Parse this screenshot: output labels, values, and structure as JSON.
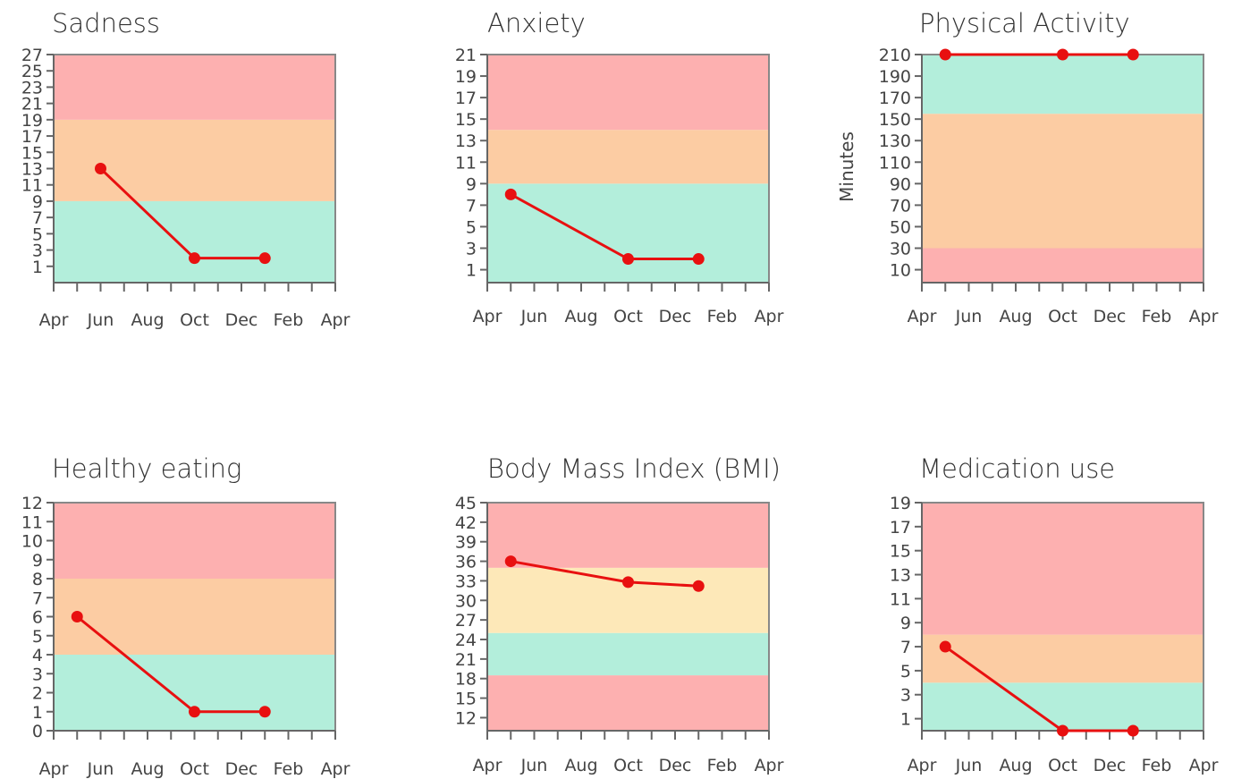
{
  "colors": {
    "red_zone": "#fdb0b0",
    "orange_zone": "#fccca3",
    "yellow_zone": "#fde8b8",
    "green_zone": "#b3eedb",
    "line": "#e81010",
    "axis": "#666666",
    "frame": "#888888"
  },
  "x_tick_labels": [
    "Apr",
    "Jun",
    "Aug",
    "Oct",
    "Dec",
    "Feb",
    "Apr"
  ],
  "x_axis_note": "x values are months since the first April tick (April = 0 ... April next year = 12)",
  "chart_data": [
    {
      "type": "line",
      "title": "Sadness",
      "xlabel": "",
      "ylabel": "",
      "x_ticks": [
        0,
        2,
        4,
        6,
        8,
        10,
        12
      ],
      "ylim": [
        -1,
        27
      ],
      "y_ticks": [
        1,
        3,
        5,
        7,
        9,
        11,
        13,
        15,
        17,
        19,
        21,
        23,
        25,
        27
      ],
      "bands": [
        {
          "from": -1,
          "to": 9,
          "color": "green_zone"
        },
        {
          "from": 9,
          "to": 19,
          "color": "orange_zone"
        },
        {
          "from": 19,
          "to": 27,
          "color": "red_zone"
        }
      ],
      "series": [
        {
          "x": [
            2,
            6,
            9
          ],
          "values": [
            13,
            2,
            2
          ]
        }
      ]
    },
    {
      "type": "line",
      "title": "Anxiety",
      "xlabel": "",
      "ylabel": "",
      "x_ticks": [
        0,
        2,
        4,
        6,
        8,
        10,
        12
      ],
      "ylim": [
        -0.2,
        21
      ],
      "y_ticks": [
        1,
        3,
        5,
        7,
        9,
        11,
        13,
        15,
        17,
        19,
        21
      ],
      "bands": [
        {
          "from": -0.2,
          "to": 9,
          "color": "green_zone"
        },
        {
          "from": 9,
          "to": 14,
          "color": "orange_zone"
        },
        {
          "from": 14,
          "to": 21,
          "color": "red_zone"
        }
      ],
      "series": [
        {
          "x": [
            1,
            6,
            9
          ],
          "values": [
            8,
            2,
            2
          ]
        }
      ]
    },
    {
      "type": "line",
      "title": "Physical Activity",
      "xlabel": "",
      "ylabel": "Minutes",
      "x_ticks": [
        0,
        2,
        4,
        6,
        8,
        10,
        12
      ],
      "ylim": [
        -2,
        210
      ],
      "y_ticks": [
        10,
        30,
        50,
        70,
        90,
        110,
        130,
        150,
        170,
        190,
        210
      ],
      "bands": [
        {
          "from": -2,
          "to": 30,
          "color": "red_zone"
        },
        {
          "from": 30,
          "to": 155,
          "color": "orange_zone"
        },
        {
          "from": 155,
          "to": 210,
          "color": "green_zone"
        }
      ],
      "series": [
        {
          "x": [
            1,
            6,
            9
          ],
          "values": [
            210,
            210,
            210
          ]
        }
      ]
    },
    {
      "type": "line",
      "title": "Healthy eating",
      "xlabel": "",
      "ylabel": "",
      "x_ticks": [
        0,
        2,
        4,
        6,
        8,
        10,
        12
      ],
      "ylim": [
        0,
        12
      ],
      "y_ticks": [
        0,
        1,
        2,
        3,
        4,
        5,
        6,
        7,
        8,
        9,
        10,
        11,
        12
      ],
      "bands": [
        {
          "from": 0,
          "to": 4,
          "color": "green_zone"
        },
        {
          "from": 4,
          "to": 8,
          "color": "orange_zone"
        },
        {
          "from": 8,
          "to": 12,
          "color": "red_zone"
        }
      ],
      "series": [
        {
          "x": [
            1,
            6,
            9
          ],
          "values": [
            6,
            1,
            1
          ]
        }
      ]
    },
    {
      "type": "line",
      "title": "Body Mass Index (BMI)",
      "xlabel": "",
      "ylabel": "",
      "x_ticks": [
        0,
        2,
        4,
        6,
        8,
        10,
        12
      ],
      "ylim": [
        10,
        45
      ],
      "y_ticks": [
        12,
        15,
        18,
        21,
        24,
        27,
        30,
        33,
        36,
        39,
        42,
        45
      ],
      "bands": [
        {
          "from": 10,
          "to": 18.5,
          "color": "red_zone"
        },
        {
          "from": 18.5,
          "to": 25,
          "color": "green_zone"
        },
        {
          "from": 25,
          "to": 35,
          "color": "yellow_zone"
        },
        {
          "from": 35,
          "to": 45,
          "color": "red_zone"
        }
      ],
      "series": [
        {
          "x": [
            1,
            6,
            9
          ],
          "values": [
            36,
            32.8,
            32.2
          ]
        }
      ]
    },
    {
      "type": "line",
      "title": "Medication use",
      "xlabel": "",
      "ylabel": "",
      "x_ticks": [
        0,
        2,
        4,
        6,
        8,
        10,
        12
      ],
      "ylim": [
        0,
        19
      ],
      "y_ticks": [
        1,
        3,
        5,
        7,
        9,
        11,
        13,
        15,
        17,
        19
      ],
      "bands": [
        {
          "from": 0,
          "to": 4,
          "color": "green_zone"
        },
        {
          "from": 4,
          "to": 8,
          "color": "orange_zone"
        },
        {
          "from": 8,
          "to": 19,
          "color": "red_zone"
        }
      ],
      "series": [
        {
          "x": [
            1,
            6,
            9
          ],
          "values": [
            7,
            0,
            0
          ]
        }
      ]
    }
  ]
}
